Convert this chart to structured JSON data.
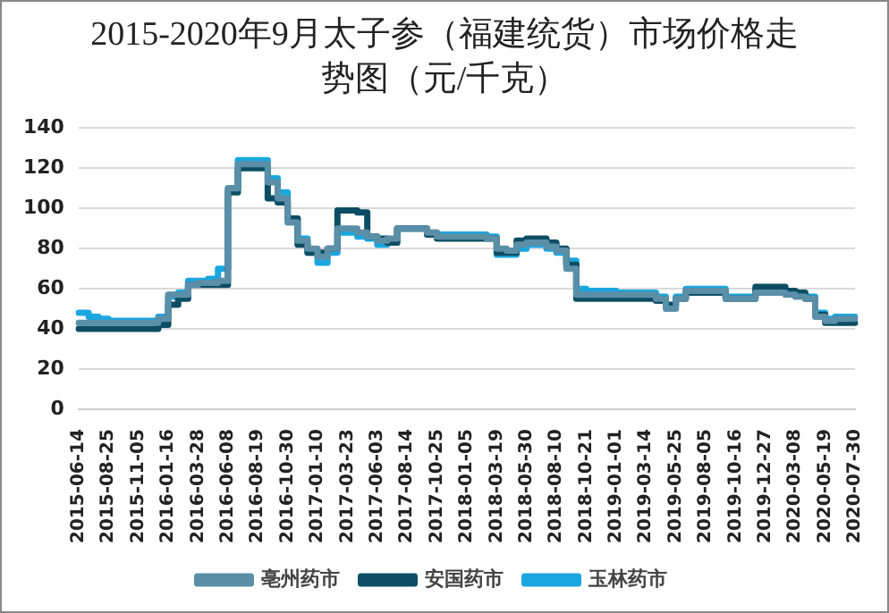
{
  "chart_data": {
    "type": "step",
    "title": "2015-2020年9月太子参（福建统货）市场价格走势图（元/千克）",
    "categories": [
      "2015-06-14",
      null,
      null,
      "2015-08-25",
      null,
      null,
      "2015-11-05",
      null,
      null,
      "2016-01-16",
      null,
      null,
      "2016-03-28",
      null,
      null,
      "2016-06-08",
      null,
      null,
      "2016-08-19",
      null,
      null,
      "2016-10-30",
      null,
      null,
      "2017-01-10",
      null,
      null,
      "2017-03-23",
      null,
      null,
      "2017-06-03",
      null,
      null,
      "2017-08-14",
      null,
      null,
      "2017-10-25",
      null,
      null,
      "2018-01-05",
      null,
      null,
      "2018-03-19",
      null,
      null,
      "2018-05-30",
      null,
      null,
      "2018-08-10",
      null,
      null,
      "2018-10-21",
      null,
      null,
      "2019-01-01",
      null,
      null,
      "2019-03-14",
      null,
      null,
      "2019-05-25",
      null,
      null,
      "2019-08-05",
      null,
      null,
      "2019-10-16",
      null,
      null,
      "2019-12-27",
      null,
      null,
      "2020-03-08",
      null,
      null,
      "2020-05-19",
      null,
      null,
      "2020-07-30"
    ],
    "series": [
      {
        "name": "亳州药市",
        "color": "#5b8fa8",
        "values": [
          43,
          43,
          43,
          43,
          43,
          43,
          43,
          43,
          45,
          57,
          57,
          62,
          63,
          63,
          64,
          110,
          122,
          122,
          122,
          113,
          105,
          93,
          84,
          80,
          76,
          80,
          90,
          90,
          88,
          86,
          84,
          85,
          90,
          90,
          90,
          88,
          86,
          86,
          86,
          86,
          86,
          85,
          80,
          79,
          82,
          83,
          83,
          81,
          79,
          70,
          57,
          57,
          57,
          57,
          57,
          57,
          57,
          57,
          55,
          50,
          55,
          59,
          59,
          59,
          59,
          55,
          55,
          55,
          58,
          58,
          58,
          57,
          56,
          55,
          46,
          44,
          45,
          45,
          45
        ]
      },
      {
        "name": "安国药市",
        "color": "#0d4d63",
        "values": [
          40,
          40,
          40,
          40,
          40,
          40,
          40,
          40,
          42,
          52,
          55,
          62,
          62,
          62,
          62,
          108,
          120,
          120,
          120,
          105,
          103,
          95,
          82,
          78,
          78,
          80,
          99,
          99,
          98,
          86,
          85,
          83,
          90,
          90,
          90,
          87,
          85,
          85,
          85,
          85,
          85,
          85,
          78,
          78,
          84,
          85,
          85,
          83,
          80,
          72,
          55,
          55,
          55,
          55,
          55,
          55,
          55,
          55,
          54,
          52,
          55,
          58,
          58,
          58,
          58,
          55,
          55,
          55,
          61,
          61,
          61,
          59,
          58,
          55,
          47,
          43,
          43,
          43,
          43
        ]
      },
      {
        "name": "玉林药市",
        "color": "#1aa7e0",
        "values": [
          48,
          46,
          45,
          44,
          44,
          44,
          44,
          44,
          46,
          56,
          58,
          64,
          64,
          65,
          70,
          110,
          124,
          124,
          124,
          115,
          108,
          95,
          85,
          78,
          73,
          78,
          88,
          88,
          86,
          85,
          82,
          83,
          90,
          90,
          90,
          88,
          87,
          87,
          87,
          87,
          87,
          86,
          77,
          77,
          80,
          82,
          82,
          80,
          78,
          74,
          60,
          59,
          59,
          59,
          58,
          58,
          58,
          58,
          56,
          51,
          56,
          60,
          60,
          60,
          60,
          56,
          56,
          56,
          59,
          59,
          59,
          58,
          57,
          56,
          48,
          45,
          46,
          46,
          46
        ]
      }
    ],
    "ylim": [
      0,
      140
    ],
    "yticks": [
      0,
      20,
      40,
      60,
      80,
      100,
      120,
      140
    ],
    "grid": "y",
    "legend": "bottom",
    "marker": "none",
    "line_style": "solid"
  }
}
